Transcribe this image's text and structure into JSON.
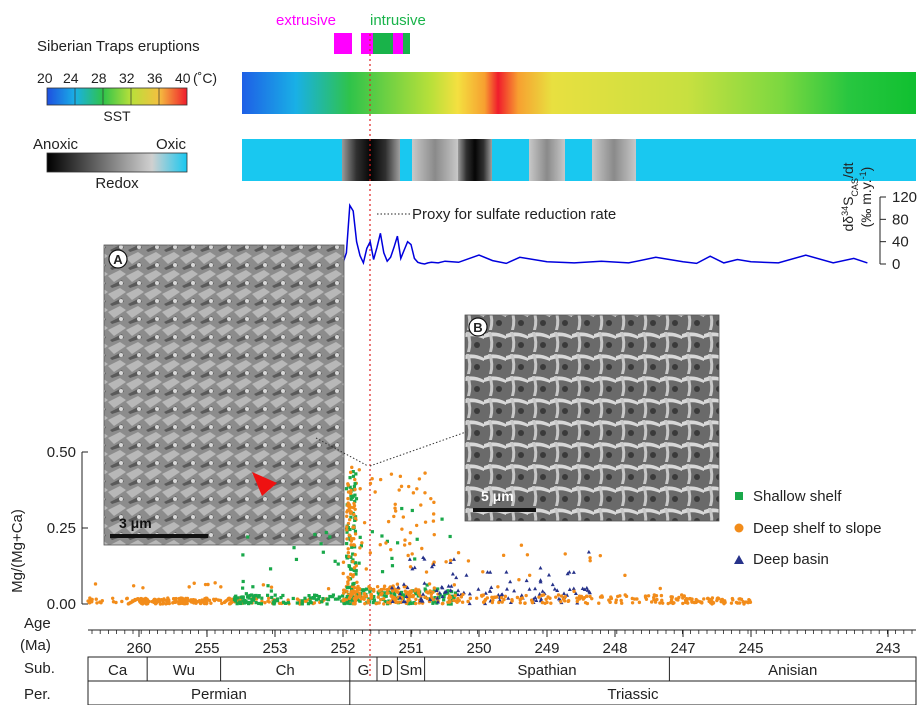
{
  "labels": {
    "extrusive": "extrusive",
    "intrusive": "intrusive",
    "eruptions": "Siberian Traps eruptions",
    "sst_ticks": [
      "20",
      "24",
      "28",
      "32",
      "36",
      "40"
    ],
    "sst_unit": "(˚C)",
    "sst": "SST",
    "anoxic": "Anoxic",
    "oxic": "Oxic",
    "redox": "Redox",
    "proxy": "Proxy for sulfate reduction rate",
    "panel_a": "A",
    "panel_b": "B",
    "scale_a": "3 μm",
    "scale_b": "5 μm",
    "age_label": "Age",
    "ma_label": "(Ma)",
    "sub_label": "Sub.",
    "per_label": "Per."
  },
  "colors": {
    "extrusive": "#ff00ff",
    "intrusive": "#19b34a",
    "proxy_line": "#0000dd",
    "shallow": "#19a84a",
    "deep_shelf": "#f28c1a",
    "basin": "#26328a",
    "redline": "#e02020"
  },
  "chart_data": [
    {
      "type": "line",
      "name": "sulfate-reduction-proxy",
      "ylabel": "dδ³⁴S_CAS/dt (‰ m.y.⁻¹)",
      "ylabel_main": "dδ",
      "ylabel_sup": "34",
      "ylabel_s": "S",
      "ylabel_sub": "CAS",
      "ylabel_tail": "/dt",
      "ylabel_unit": "(‰ m.y.",
      "ylabel_unit_sup": "-1",
      "ylabel_unit_tail": ")",
      "yticks": [
        0,
        40,
        80,
        120
      ],
      "ylim": [
        0,
        120
      ],
      "x": [
        252.4,
        252.3,
        252.2,
        252.1,
        252.05,
        252.0,
        251.95,
        251.9,
        251.85,
        251.8,
        251.75,
        251.7,
        251.65,
        251.6,
        251.55,
        251.5,
        251.45,
        251.4,
        251.35,
        251.3,
        251.25,
        251.2,
        251.15,
        251.1,
        251.05,
        251.0,
        250.95,
        250.9,
        250.85,
        250.8,
        250.75,
        250.7,
        250.6,
        250.5,
        250.3,
        250.0,
        249.8,
        249.6,
        249.4,
        249.0,
        248.6,
        248.2,
        247.8,
        247.4,
        247.0,
        246.6,
        246.2,
        245.8,
        245.4,
        245.0,
        244.6,
        244.2,
        243.8,
        243.5,
        243.3
      ],
      "y": [
        30,
        4,
        12,
        25,
        10,
        2,
        20,
        105,
        95,
        40,
        15,
        2,
        28,
        40,
        8,
        30,
        55,
        20,
        5,
        12,
        30,
        50,
        10,
        25,
        40,
        35,
        10,
        3,
        1,
        0,
        2,
        3,
        2,
        5,
        3,
        16,
        6,
        1,
        12,
        4,
        2,
        5,
        2,
        12,
        4,
        1,
        14,
        2,
        8,
        4,
        2,
        16,
        2,
        10,
        2
      ]
    },
    {
      "type": "scatter",
      "name": "mg-ratio",
      "ylabel": "Mg/(Mg+Ca)",
      "xlabel": "Age (Ma)",
      "ylim": [
        0,
        0.5
      ],
      "yticks": [
        "0.00",
        "0.25",
        "0.50"
      ],
      "xlim": [
        260.9,
        242.9
      ],
      "xticks": [
        "260",
        "255",
        "253",
        "252",
        "251",
        "250",
        "249",
        "248",
        "247",
        "245",
        "243"
      ],
      "xticks_data_positions": [
        260,
        255,
        253,
        252,
        251,
        250,
        249,
        248,
        247,
        245,
        243
      ],
      "series": [
        {
          "name": "Shallow shelf",
          "marker": "square",
          "color": "#19a84a"
        },
        {
          "name": "Deep shelf to slope",
          "marker": "circle",
          "color": "#f28c1a"
        },
        {
          "name": "Deep basin",
          "marker": "triangle",
          "color": "#26328a"
        }
      ],
      "legend_position": "right"
    }
  ],
  "stratigraphy": {
    "stages": [
      {
        "label": "Ca",
        "from": 260.9,
        "to": 259.4
      },
      {
        "label": "Wu",
        "from": 259.4,
        "to": 254.6
      },
      {
        "label": "Ch",
        "from": 254.6,
        "to": 251.9
      },
      {
        "label": "G",
        "from": 251.9,
        "to": 251.5
      },
      {
        "label": "D",
        "from": 251.5,
        "to": 251.2
      },
      {
        "label": "Sm",
        "from": 251.2,
        "to": 250.8
      },
      {
        "label": "Spathian",
        "from": 250.8,
        "to": 247.2
      },
      {
        "label": "Anisian",
        "from": 247.2,
        "to": 242.9
      }
    ],
    "periods": [
      {
        "label": "Permian",
        "from": 260.9,
        "to": 251.9
      },
      {
        "label": "Triassic",
        "from": 251.9,
        "to": 242.9
      }
    ]
  }
}
